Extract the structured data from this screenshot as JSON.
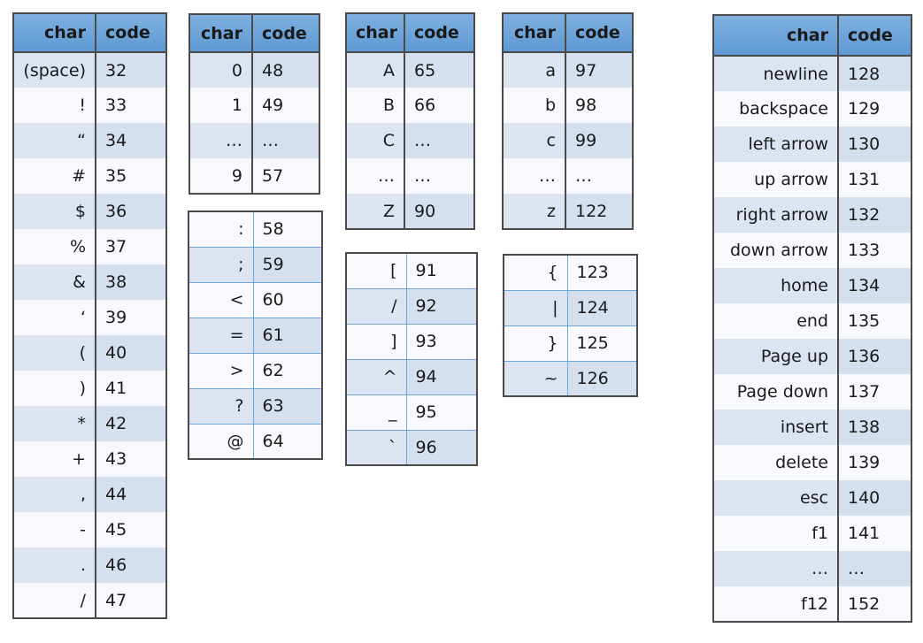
{
  "header": {
    "char": "char",
    "code": "code"
  },
  "tables": [
    {
      "header": true,
      "first_shaded": true,
      "rows": [
        [
          "(space)",
          "32"
        ],
        [
          "!",
          "33"
        ],
        [
          "“",
          "34"
        ],
        [
          "#",
          "35"
        ],
        [
          "$",
          "36"
        ],
        [
          "%",
          "37"
        ],
        [
          "&",
          "38"
        ],
        [
          "‘",
          "39"
        ],
        [
          "(",
          "40"
        ],
        [
          ")",
          "41"
        ],
        [
          "*",
          "42"
        ],
        [
          "+",
          "43"
        ],
        [
          ",",
          "44"
        ],
        [
          "-",
          "45"
        ],
        [
          ".",
          "46"
        ],
        [
          "/",
          "47"
        ]
      ]
    },
    {
      "header": true,
      "first_shaded": true,
      "rows": [
        [
          "0",
          "48"
        ],
        [
          "1",
          "49"
        ],
        [
          "…",
          "…"
        ],
        [
          "9",
          "57"
        ]
      ]
    },
    {
      "header": false,
      "first_shaded": false,
      "rows": [
        [
          ":",
          "58"
        ],
        [
          ";",
          "59"
        ],
        [
          "<",
          "60"
        ],
        [
          "=",
          "61"
        ],
        [
          ">",
          "62"
        ],
        [
          "?",
          "63"
        ],
        [
          "@",
          "64"
        ]
      ]
    },
    {
      "header": true,
      "first_shaded": true,
      "rows": [
        [
          "A",
          "65"
        ],
        [
          "B",
          "66"
        ],
        [
          "C",
          "…"
        ],
        [
          "…",
          "…"
        ],
        [
          "Z",
          "90"
        ]
      ]
    },
    {
      "header": false,
      "first_shaded": false,
      "rows": [
        [
          "[",
          "91"
        ],
        [
          "/",
          "92"
        ],
        [
          "]",
          "93"
        ],
        [
          "^",
          "94"
        ],
        [
          "_",
          "95"
        ],
        [
          "`",
          "96"
        ]
      ]
    },
    {
      "header": true,
      "first_shaded": true,
      "rows": [
        [
          "a",
          "97"
        ],
        [
          "b",
          "98"
        ],
        [
          "c",
          "99"
        ],
        [
          "…",
          "…"
        ],
        [
          "z",
          "122"
        ]
      ]
    },
    {
      "header": false,
      "first_shaded": false,
      "rows": [
        [
          "{",
          "123"
        ],
        [
          "|",
          "124"
        ],
        [
          "}",
          "125"
        ],
        [
          "~",
          "126"
        ]
      ]
    },
    {
      "header": true,
      "first_shaded": true,
      "rows": [
        [
          "newline",
          "128"
        ],
        [
          "backspace",
          "129"
        ],
        [
          "left arrow",
          "130"
        ],
        [
          "up arrow",
          "131"
        ],
        [
          "right arrow",
          "132"
        ],
        [
          "down arrow",
          "133"
        ],
        [
          "home",
          "134"
        ],
        [
          "end",
          "135"
        ],
        [
          "Page up",
          "136"
        ],
        [
          "Page down",
          "137"
        ],
        [
          "insert",
          "138"
        ],
        [
          "delete",
          "139"
        ],
        [
          "esc",
          "140"
        ],
        [
          "f1",
          "141"
        ],
        [
          "…",
          "…"
        ],
        [
          "f12",
          "152"
        ]
      ]
    }
  ]
}
